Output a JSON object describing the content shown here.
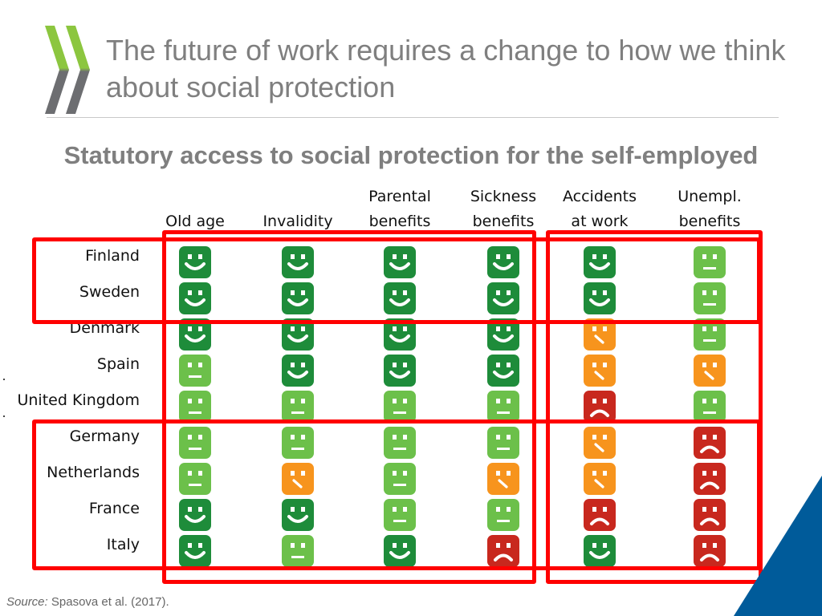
{
  "slide": {
    "title": "The future of work requires a change to how we think about social protection",
    "subtitle": "Statutory access to social protection for the self-employed",
    "source_label": "Source:",
    "source_text": "Spasova et al. (2017)."
  },
  "columns": [
    {
      "line1": "",
      "line2": "Old age"
    },
    {
      "line1": "",
      "line2": "Invalidity"
    },
    {
      "line1": "Parental",
      "line2": "benefits"
    },
    {
      "line1": "Sickness",
      "line2": "benefits"
    },
    {
      "line1": "Accidents",
      "line2": "at work"
    },
    {
      "line1": "Unempl.",
      "line2": "benefits"
    }
  ],
  "rows": [
    {
      "country": "Finland",
      "ratings": [
        "full",
        "full",
        "full",
        "full",
        "full",
        "neutral"
      ]
    },
    {
      "country": "Sweden",
      "ratings": [
        "full",
        "full",
        "full",
        "full",
        "full",
        "neutral"
      ]
    },
    {
      "country": "Denmark",
      "ratings": [
        "full",
        "full",
        "full",
        "full",
        "partial",
        "neutral"
      ]
    },
    {
      "country": "Spain",
      "ratings": [
        "neutral",
        "full",
        "full",
        "full",
        "partial",
        "partial"
      ]
    },
    {
      "country": "United Kingdom",
      "ratings": [
        "neutral",
        "neutral",
        "neutral",
        "neutral",
        "none",
        "neutral"
      ]
    },
    {
      "country": "Germany",
      "ratings": [
        "neutral",
        "neutral",
        "neutral",
        "neutral",
        "partial",
        "none"
      ]
    },
    {
      "country": "Netherlands",
      "ratings": [
        "neutral",
        "partial",
        "neutral",
        "partial",
        "partial",
        "none"
      ]
    },
    {
      "country": "France",
      "ratings": [
        "full",
        "full",
        "neutral",
        "neutral",
        "none",
        "none"
      ]
    },
    {
      "country": "Italy",
      "ratings": [
        "full",
        "neutral",
        "full",
        "none",
        "full",
        "none"
      ]
    }
  ],
  "colors": {
    "full": "#1e8c3a",
    "neutral": "#6cc04a",
    "partial": "#f7941d",
    "none": "#c8281e",
    "highlight": "#ff0000",
    "logo": "#8cc63f",
    "corner": "#005b9a"
  },
  "icons": {
    "full": "smiling-face-icon",
    "neutral": "neutral-face-icon",
    "partial": "skeptical-face-icon",
    "none": "frowning-face-icon"
  }
}
